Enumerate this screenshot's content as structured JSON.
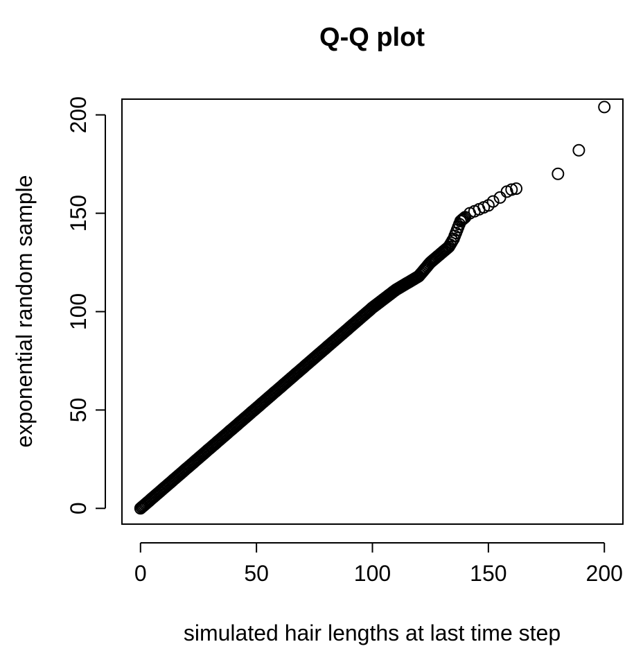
{
  "chart_data": {
    "type": "scatter",
    "title": "Q-Q plot",
    "xlabel": "simulated hair lengths at last time step",
    "ylabel": "exponential random sample",
    "xlim": [
      -8,
      208
    ],
    "ylim": [
      -8,
      208
    ],
    "xticks": [
      0,
      50,
      100,
      150,
      200
    ],
    "yticks": [
      0,
      50,
      100,
      150,
      200
    ],
    "xtick_labels": [
      "0",
      "50",
      "100",
      "150",
      "200"
    ],
    "ytick_labels": [
      "0",
      "50",
      "100",
      "150",
      "200"
    ],
    "grid": false,
    "legend": "none",
    "marker": "open-circle",
    "color": "#000000",
    "trend": {
      "description_points_x": [
        0,
        100,
        110,
        120,
        125,
        130,
        133,
        135,
        138,
        140
      ],
      "description_points_y": [
        0,
        102,
        111,
        118,
        125,
        130,
        133,
        137,
        146,
        148
      ]
    },
    "points": [
      {
        "x": 140,
        "y": 148
      },
      {
        "x": 142,
        "y": 150
      },
      {
        "x": 144,
        "y": 151
      },
      {
        "x": 146,
        "y": 152
      },
      {
        "x": 148,
        "y": 153
      },
      {
        "x": 150,
        "y": 154
      },
      {
        "x": 152,
        "y": 156
      },
      {
        "x": 155,
        "y": 158
      },
      {
        "x": 158,
        "y": 161
      },
      {
        "x": 160,
        "y": 162
      },
      {
        "x": 162,
        "y": 162.5
      },
      {
        "x": 180,
        "y": 170
      },
      {
        "x": 189,
        "y": 182
      },
      {
        "x": 200,
        "y": 204
      }
    ]
  }
}
